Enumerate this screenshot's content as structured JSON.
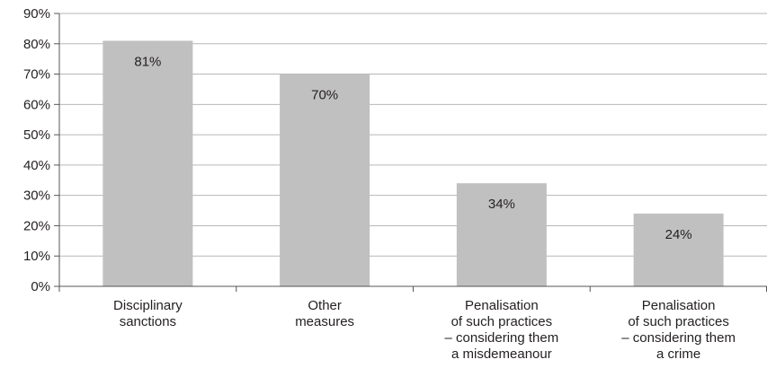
{
  "chart_data": {
    "type": "bar",
    "categories": [
      [
        "Disciplinary",
        "sanctions"
      ],
      [
        "Other",
        "measures"
      ],
      [
        "Penalisation",
        "of such practices",
        "– considering them",
        "a misdemeanour"
      ],
      [
        "Penalisation",
        "of such practices",
        "– considering them",
        "a crime"
      ]
    ],
    "values": [
      81,
      70,
      34,
      24
    ],
    "data_labels": [
      "81%",
      "70%",
      "34%",
      "24%"
    ],
    "y_ticks": [
      "0%",
      "10%",
      "20%",
      "30%",
      "40%",
      "50%",
      "60%",
      "70%",
      "80%",
      "90%"
    ],
    "ylim": [
      0,
      90
    ],
    "grid": true,
    "legend": "none",
    "title": "",
    "xlabel": "",
    "ylabel": "",
    "colors": {
      "bar": "#c0c0c0",
      "grid": "#b7b7b7",
      "axis": "#555555",
      "text": "#231f20"
    }
  }
}
